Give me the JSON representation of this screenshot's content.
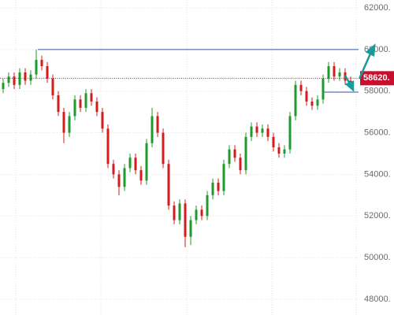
{
  "chart_data": {
    "type": "candlestick",
    "open": [
      58100,
      58400,
      58700,
      58300,
      58900,
      58500,
      58800,
      59500,
      59200,
      58600,
      57800,
      57000,
      56000,
      56800,
      57600,
      57200,
      57900,
      57500,
      57000,
      56200,
      54500,
      54000,
      53400,
      54300,
      54800,
      54200,
      53700,
      55500,
      56800,
      56000,
      54500,
      52500,
      51800,
      52600,
      51000,
      51800,
      52300,
      52000,
      53000,
      53600,
      53200,
      54500,
      55200,
      54800,
      54200,
      55800,
      56300,
      56000,
      56200,
      55800,
      55300,
      55000,
      55200,
      56800,
      58300,
      58000,
      57500,
      57300,
      57600,
      58600,
      59200,
      58700,
      58900,
      58500
    ],
    "high": [
      58600,
      58900,
      58900,
      59100,
      59100,
      59000,
      60000,
      59700,
      59400,
      58800,
      58000,
      57200,
      57000,
      57800,
      57800,
      58100,
      58100,
      57700,
      57200,
      56400,
      54700,
      54200,
      54500,
      55000,
      55000,
      54400,
      55700,
      57200,
      57000,
      56200,
      54700,
      52700,
      52800,
      52800,
      52000,
      52500,
      52500,
      53200,
      53800,
      53800,
      54700,
      55400,
      55400,
      55000,
      56000,
      56500,
      56500,
      56400,
      56400,
      56000,
      55500,
      55400,
      57000,
      58500,
      58500,
      58200,
      57700,
      57800,
      58800,
      59400,
      59400,
      59100,
      59100,
      58700
    ],
    "low": [
      57900,
      58200,
      58100,
      58100,
      58300,
      58300,
      58600,
      59000,
      58400,
      57600,
      56800,
      55500,
      55800,
      56600,
      57000,
      57000,
      57300,
      56800,
      56000,
      54300,
      53800,
      53000,
      53200,
      54100,
      54000,
      53500,
      53500,
      55300,
      55800,
      54300,
      52300,
      51600,
      51600,
      50500,
      50600,
      51600,
      51800,
      51800,
      52800,
      53000,
      53000,
      54300,
      54600,
      54000,
      54000,
      55600,
      55800,
      55800,
      55600,
      55100,
      54800,
      54800,
      55000,
      56600,
      57800,
      57300,
      57100,
      57100,
      57400,
      58400,
      58500,
      58500,
      58300,
      58200
    ],
    "close": [
      58400,
      58700,
      58300,
      58900,
      58500,
      58800,
      59500,
      59200,
      58600,
      57800,
      57000,
      56000,
      56800,
      57600,
      57200,
      57900,
      57500,
      57000,
      56200,
      54500,
      54000,
      53400,
      54300,
      54800,
      54200,
      53700,
      55500,
      56800,
      56000,
      54500,
      52500,
      51800,
      52600,
      51000,
      51800,
      52300,
      52000,
      53000,
      53600,
      53200,
      54500,
      55200,
      54800,
      54200,
      55800,
      56300,
      56000,
      56200,
      55800,
      55300,
      55000,
      55200,
      56800,
      58300,
      58000,
      57500,
      57300,
      57600,
      58600,
      59200,
      58700,
      58900,
      58500,
      58400
    ],
    "up_color": "#1f9a2e",
    "down_color": "#d31c1c",
    "ylim": [
      47240,
      62380
    ],
    "yticks": [
      {
        "value": 48000,
        "label": "48000."
      },
      {
        "value": 50000,
        "label": "50000."
      },
      {
        "value": 52000,
        "label": "52000."
      },
      {
        "value": 54000,
        "label": "54000."
      },
      {
        "value": 56000,
        "label": "56000."
      },
      {
        "value": 58000,
        "label": "58000."
      },
      {
        "value": 60000,
        "label": "60000."
      },
      {
        "value": 62000,
        "label": "62000."
      }
    ],
    "levels": [
      60000,
      57950
    ],
    "level_color": "#3355aa",
    "current_price": {
      "value": 58620,
      "label": "58620."
    },
    "price_color": "#c8102e",
    "grid": true
  }
}
